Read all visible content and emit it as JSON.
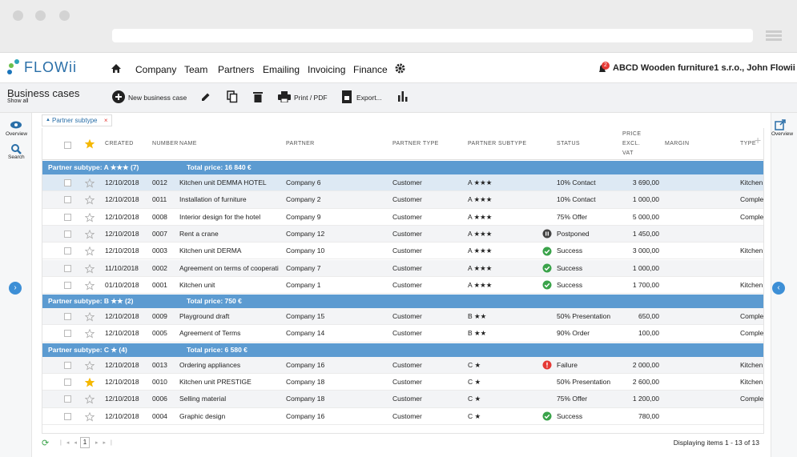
{
  "nav": {
    "logo": "FLOWii",
    "menu": [
      "Company",
      "Team",
      "Partners",
      "Emailing",
      "Invoicing",
      "Finance"
    ],
    "notifications": "2",
    "user": "ABCD Wooden furniture1 s.r.o., John Flowii"
  },
  "toolbar": {
    "title": "Business cases",
    "subtitle": "Show all",
    "buttons": [
      "New business case",
      "Print / PDF",
      "Export..."
    ]
  },
  "sidebar": {
    "left": [
      "Overview",
      "Search"
    ],
    "right": "Overview"
  },
  "filter": "Partner subtype",
  "table": {
    "columns": {
      "created": "CREATED",
      "number": "NUMBER",
      "name": "NAME",
      "partner": "PARTNER",
      "partner_type": "PARTNER TYPE",
      "subtype": "PARTNER SUBTYPE",
      "status": "STATUS",
      "price": [
        "PRICE",
        "EXCL.",
        "VAT"
      ],
      "margin": "MARGIN",
      "type": "TYPE"
    },
    "groups": [
      {
        "label": "Partner subtype: A ★★★ (7)",
        "total": "Total price: 16 840 €",
        "rows": [
          {
            "created": "12/10/2018",
            "number": "0012",
            "name": "Kitchen unit DEMMA HOTEL",
            "partner": "Company 6",
            "partner_type": "Customer",
            "subtype": "A ★★★",
            "status": "10% Contact",
            "price": "3 690,00",
            "type": "Kitchen u",
            "selected": true
          },
          {
            "created": "12/10/2018",
            "number": "0011",
            "name": "Installation of furniture",
            "partner": "Company 2",
            "partner_type": "Customer",
            "subtype": "A ★★★",
            "status": "10% Contact",
            "price": "1 000,00",
            "type": "Complet"
          },
          {
            "created": "12/10/2018",
            "number": "0008",
            "name": "Interior design for the hotel",
            "partner": "Company 9",
            "partner_type": "Customer",
            "subtype": "A ★★★",
            "status": "75% Offer",
            "price": "5 000,00",
            "type": "Complet"
          },
          {
            "created": "12/10/2018",
            "number": "0007",
            "name": "Rent a crane",
            "partner": "Company 12",
            "partner_type": "Customer",
            "subtype": "A ★★★",
            "status": "Postponed",
            "status_icon": "pause",
            "price": "1 450,00"
          },
          {
            "created": "12/10/2018",
            "number": "0003",
            "name": "Kitchen unit DERMA",
            "partner": "Company 10",
            "partner_type": "Customer",
            "subtype": "A ★★★",
            "status": "Success",
            "status_icon": "success",
            "price": "3 000,00",
            "type": "Kitchen u"
          },
          {
            "created": "11/10/2018",
            "number": "0002",
            "name": "Agreement on terms of cooperati",
            "partner": "Company 7",
            "partner_type": "Customer",
            "subtype": "A ★★★",
            "status": "Success",
            "status_icon": "success",
            "price": "1 000,00"
          },
          {
            "created": "01/10/2018",
            "number": "0001",
            "name": "Kitchen unit",
            "partner": "Company 1",
            "partner_type": "Customer",
            "subtype": "A ★★★",
            "status": "Success",
            "status_icon": "success",
            "price": "1 700,00",
            "type": "Kitchen u"
          }
        ]
      },
      {
        "label": "Partner subtype: B ★★ (2)",
        "total": "Total price: 750 €",
        "rows": [
          {
            "created": "12/10/2018",
            "number": "0009",
            "name": "Playground draft",
            "partner": "Company 15",
            "partner_type": "Customer",
            "subtype": "B ★★",
            "status": "50% Presentation",
            "price": "650,00",
            "type": "Complet"
          },
          {
            "created": "12/10/2018",
            "number": "0005",
            "name": "Agreement of Terms",
            "partner": "Company 14",
            "partner_type": "Customer",
            "subtype": "B ★★",
            "status": "90% Order",
            "price": "100,00",
            "type": "Complet"
          }
        ]
      },
      {
        "label": "Partner subtype: C ★ (4)",
        "total": "Total price: 6 580 €",
        "rows": [
          {
            "created": "12/10/2018",
            "number": "0013",
            "name": "Ordering appliances",
            "partner": "Company 16",
            "partner_type": "Customer",
            "subtype": "C ★",
            "status": "Failure",
            "status_icon": "error",
            "price": "2 000,00",
            "type": "Kitchen u"
          },
          {
            "created": "12/10/2018",
            "number": "0010",
            "name": "Kitchen unit PRESTIGE",
            "partner": "Company 18",
            "partner_type": "Customer",
            "subtype": "C ★",
            "status": "50% Presentation",
            "price": "2 600,00",
            "type": "Kitchen u",
            "starred": true
          },
          {
            "created": "12/10/2018",
            "number": "0006",
            "name": "Selling material",
            "partner": "Company 18",
            "partner_type": "Customer",
            "subtype": "C ★",
            "status": "75% Offer",
            "price": "1 200,00",
            "type": "Complet"
          },
          {
            "created": "12/10/2018",
            "number": "0004",
            "name": "Graphic design",
            "partner": "Company 16",
            "partner_type": "Customer",
            "subtype": "C ★",
            "status": "Success",
            "status_icon": "success",
            "price": "780,00"
          }
        ]
      }
    ]
  },
  "pager": {
    "page": "1",
    "info": "Displaying items 1 - 13 of 13"
  }
}
